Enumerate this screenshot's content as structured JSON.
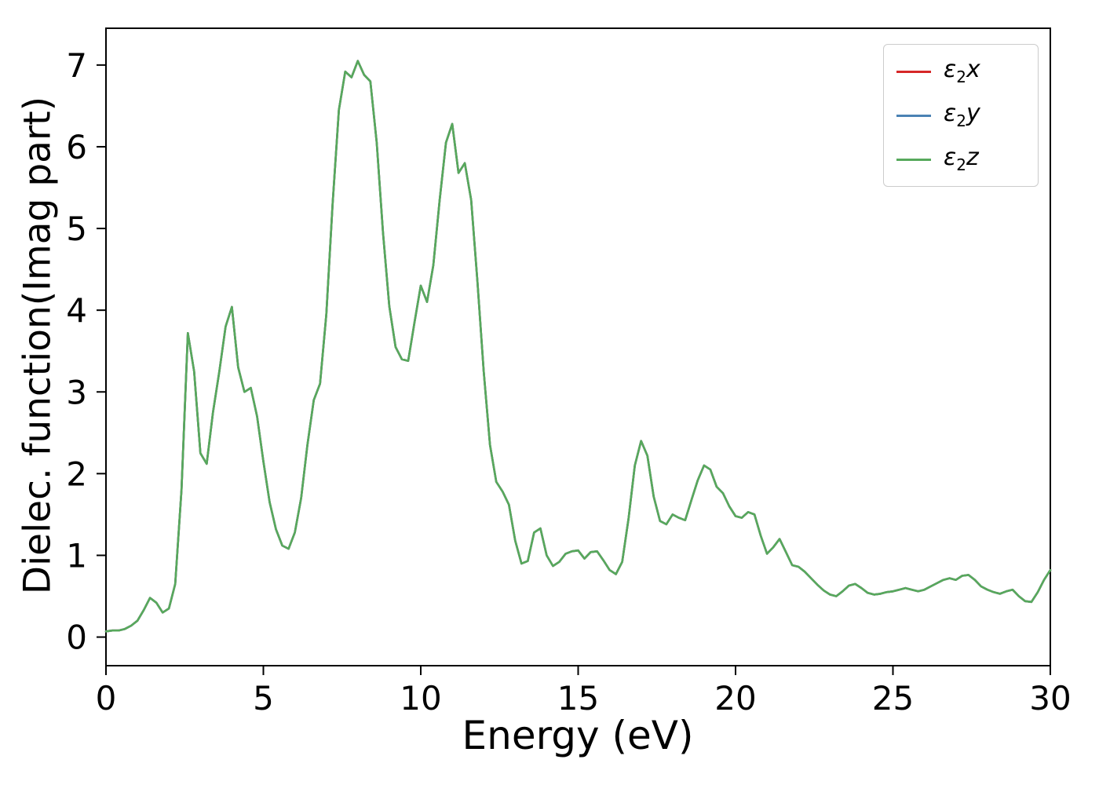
{
  "chart_data": {
    "type": "line",
    "title": "",
    "xlabel": "Energy (eV)",
    "ylabel": "Dielec. function(Imag part)",
    "xlim": [
      0,
      30
    ],
    "ylim": [
      -0.35,
      7.45
    ],
    "x_ticks": [
      0,
      5,
      10,
      15,
      20,
      25,
      30
    ],
    "y_ticks": [
      0,
      1,
      2,
      3,
      4,
      5,
      6,
      7
    ],
    "grid": false,
    "legend_position": "upper right",
    "note": "All three series (x, y, z components) overlap exactly; shared y-values sampled at x_step intervals",
    "x_start": 0,
    "x_step": 0.2,
    "values": [
      0.07,
      0.08,
      0.08,
      0.1,
      0.14,
      0.2,
      0.33,
      0.48,
      0.42,
      0.3,
      0.35,
      0.65,
      1.8,
      3.72,
      3.25,
      2.25,
      2.12,
      2.75,
      3.25,
      3.8,
      4.04,
      3.3,
      3.0,
      3.05,
      2.7,
      2.15,
      1.65,
      1.32,
      1.12,
      1.08,
      1.28,
      1.7,
      2.35,
      2.9,
      3.1,
      3.95,
      5.3,
      6.45,
      6.92,
      6.85,
      7.05,
      6.88,
      6.8,
      6.05,
      4.95,
      4.05,
      3.55,
      3.4,
      3.38,
      3.85,
      4.3,
      4.1,
      4.55,
      5.35,
      6.05,
      6.28,
      5.68,
      5.8,
      5.35,
      4.35,
      3.25,
      2.35,
      1.9,
      1.78,
      1.62,
      1.18,
      0.9,
      0.93,
      1.28,
      1.33,
      1.0,
      0.87,
      0.92,
      1.02,
      1.05,
      1.06,
      0.96,
      1.04,
      1.05,
      0.94,
      0.82,
      0.77,
      0.92,
      1.45,
      2.1,
      2.4,
      2.22,
      1.72,
      1.42,
      1.38,
      1.5,
      1.46,
      1.43,
      1.68,
      1.92,
      2.1,
      2.05,
      1.84,
      1.76,
      1.6,
      1.48,
      1.46,
      1.53,
      1.5,
      1.24,
      1.02,
      1.1,
      1.2,
      1.04,
      0.88,
      0.86,
      0.8,
      0.72,
      0.64,
      0.57,
      0.52,
      0.5,
      0.56,
      0.63,
      0.65,
      0.6,
      0.54,
      0.52,
      0.53,
      0.55,
      0.56,
      0.58,
      0.6,
      0.58,
      0.56,
      0.58,
      0.62,
      0.66,
      0.7,
      0.72,
      0.7,
      0.75,
      0.76,
      0.7,
      0.62,
      0.58,
      0.55,
      0.53,
      0.56,
      0.58,
      0.5,
      0.44,
      0.43,
      0.55,
      0.7,
      0.82
    ],
    "series": [
      {
        "name": "e2x",
        "label": "ε₂x",
        "symbol": "ε",
        "subscript": "2",
        "variable": "x",
        "color": "#d62728"
      },
      {
        "name": "e2y",
        "label": "ε₂y",
        "symbol": "ε",
        "subscript": "2",
        "variable": "y",
        "color": "#4a82b4"
      },
      {
        "name": "e2z",
        "label": "ε₂z",
        "symbol": "ε",
        "subscript": "2",
        "variable": "z",
        "color": "#57a95c"
      }
    ],
    "colors": {
      "axis": "#000000",
      "background": "#ffffff",
      "legend_border": "#cccccc"
    }
  }
}
